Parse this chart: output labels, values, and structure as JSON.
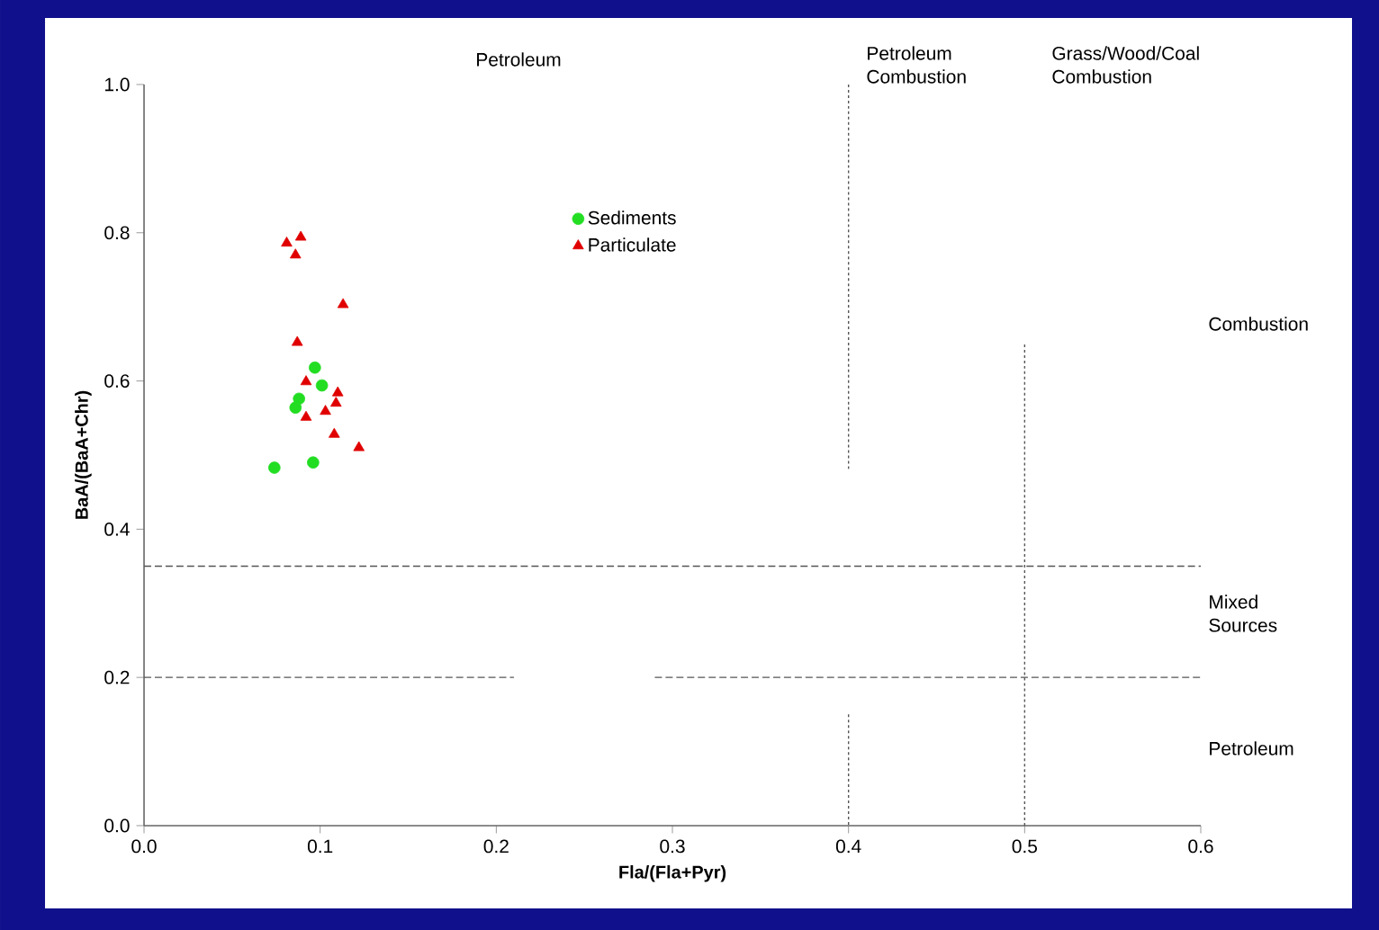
{
  "chart_data": {
    "type": "scatter",
    "xlabel": "Fla/(Fla+Pyr)",
    "ylabel": "BaA/(BaA+Chr)",
    "xlim": [
      0,
      0.6
    ],
    "ylim": [
      0,
      1.0
    ],
    "xticks": [
      {
        "value": 0,
        "label": "0.0"
      },
      {
        "value": 0.1,
        "label": "0.1"
      },
      {
        "value": 0.2,
        "label": "0.2"
      },
      {
        "value": 0.3,
        "label": "0.3"
      },
      {
        "value": 0.4,
        "label": "0.4"
      },
      {
        "value": 0.5,
        "label": "0.5"
      },
      {
        "value": 0.6,
        "label": "0.6"
      }
    ],
    "yticks": [
      {
        "value": 0,
        "label": "0.0"
      },
      {
        "value": 0.2,
        "label": "0.2"
      },
      {
        "value": 0.4,
        "label": "0.4"
      },
      {
        "value": 0.6,
        "label": "0.6"
      },
      {
        "value": 0.8,
        "label": "0.8"
      },
      {
        "value": 1.0,
        "label": "1.0"
      }
    ],
    "legend": "top",
    "grid": false,
    "series": [
      {
        "name": "Sediments",
        "color": "#22dd22",
        "marker": "circle",
        "x": [
          0.097,
          0.101,
          0.088,
          0.086,
          0.074,
          0.096
        ],
        "values": [
          0.618,
          0.594,
          0.576,
          0.564,
          0.483,
          0.49
        ]
      },
      {
        "name": "Particulate",
        "color": "#e00000",
        "marker": "triangle",
        "x": [
          0.081,
          0.089,
          0.086,
          0.113,
          0.087,
          0.092,
          0.11,
          0.109,
          0.103,
          0.092,
          0.108,
          0.122
        ],
        "values": [
          0.786,
          0.794,
          0.77,
          0.703,
          0.652,
          0.599,
          0.584,
          0.57,
          0.559,
          0.551,
          0.528,
          0.51
        ]
      },
      {
        "type": "line",
        "color": "#555555",
        "line_style": "dashed",
        "marker": "none",
        "x": [
          0,
          0.6
        ],
        "values": [
          0.35,
          0.35
        ]
      },
      {
        "type": "line",
        "color": "#555555",
        "line_style": "dashed",
        "marker": "none",
        "x": [
          0,
          0.21,
          0.25,
          0.29,
          0.6
        ],
        "values": [
          0.2,
          0.2,
          null,
          0.2,
          0.2
        ]
      },
      {
        "type": "line",
        "color": "#555555",
        "line_style": "dotted",
        "marker": "none",
        "x": [
          0.4,
          0.4
        ],
        "values": [
          1.0,
          0.48
        ]
      },
      {
        "type": "line",
        "color": "#555555",
        "line_style": "dotted",
        "marker": "none",
        "x": [
          0.4,
          0.4
        ],
        "values": [
          0.15,
          0.0
        ]
      },
      {
        "type": "line",
        "color": "#555555",
        "line_style": "dotted",
        "marker": "none",
        "x": [
          0.5,
          0.5
        ],
        "values": [
          0.0,
          0.65
        ]
      }
    ],
    "annotations": [
      "Petroleum",
      "Petroleum Combustion",
      "Grass/Wood/Coal Combustion",
      "Combustion",
      "Mixed Sources",
      "Petroleum"
    ]
  }
}
